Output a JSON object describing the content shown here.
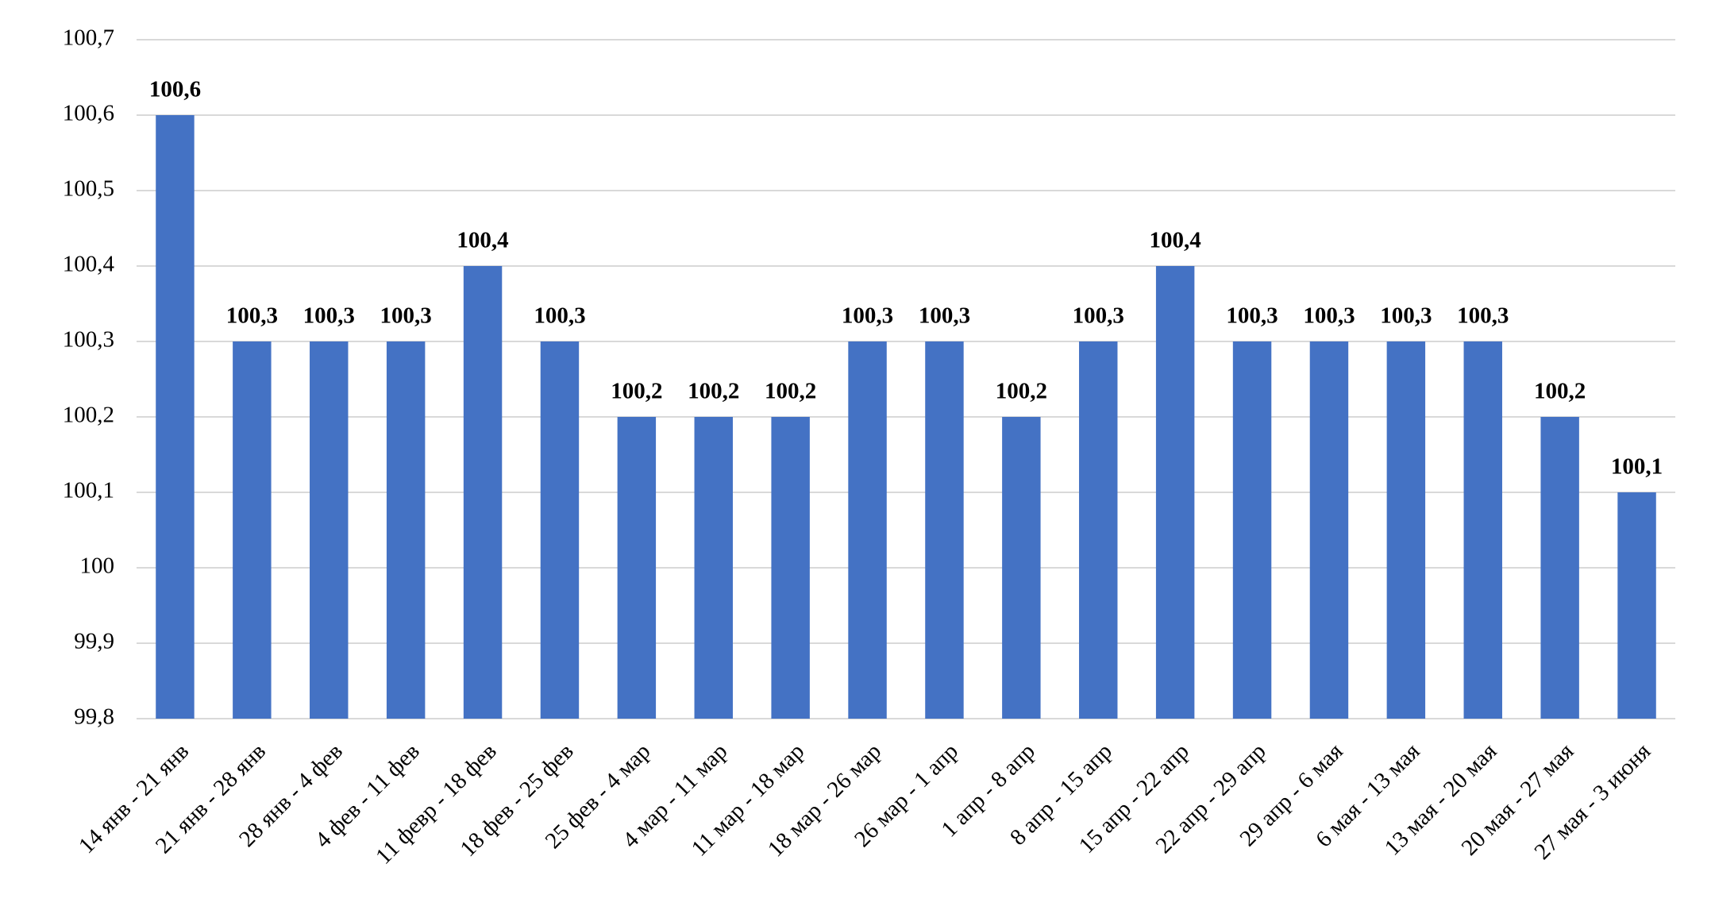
{
  "chart_data": {
    "type": "bar",
    "categories": [
      "14 янв - 21 янв",
      "21 янв - 28 янв",
      "28 янв - 4 фев",
      "4 фев - 11 фев",
      "11 февр - 18 фев",
      "18 фев - 25 фев",
      "25 фев - 4 мар",
      "4 мар - 11 мар",
      "11 мар - 18 мар",
      "18 мар - 26 мар",
      "26 мар - 1 апр",
      "1 апр - 8 апр",
      "8 апр - 15 апр",
      "15 апр - 22 апр",
      "22 апр - 29 апр",
      "29 апр - 6 мая",
      "6 мая - 13 мая",
      "13 мая - 20 мая",
      "20 мая - 27 мая",
      "27 мая - 3 июня"
    ],
    "values": [
      100.6,
      100.3,
      100.3,
      100.3,
      100.4,
      100.3,
      100.2,
      100.2,
      100.2,
      100.3,
      100.3,
      100.2,
      100.3,
      100.4,
      100.3,
      100.3,
      100.3,
      100.3,
      100.2,
      100.1
    ],
    "value_labels": [
      "100,6",
      "100,3",
      "100,3",
      "100,3",
      "100,4",
      "100,3",
      "100,2",
      "100,2",
      "100,2",
      "100,3",
      "100,3",
      "100,2",
      "100,3",
      "100,4",
      "100,3",
      "100,3",
      "100,3",
      "100,3",
      "100,2",
      "100,1"
    ],
    "color": "#4472c4",
    "ylim": [
      99.8,
      100.7
    ],
    "yticks": [
      {
        "value": 99.8,
        "label": "99,8"
      },
      {
        "value": 99.9,
        "label": "99,9"
      },
      100,
      {
        "value": 100.1,
        "label": "100,1"
      },
      {
        "value": 100.2,
        "label": "100,2"
      },
      {
        "value": 100.3,
        "label": "100,3"
      },
      {
        "value": 100.4,
        "label": "100,4"
      },
      {
        "value": 100.5,
        "label": "100,5"
      },
      {
        "value": 100.6,
        "label": "100,6"
      },
      {
        "value": 100.7,
        "label": "100,7"
      }
    ],
    "grid": true
  }
}
